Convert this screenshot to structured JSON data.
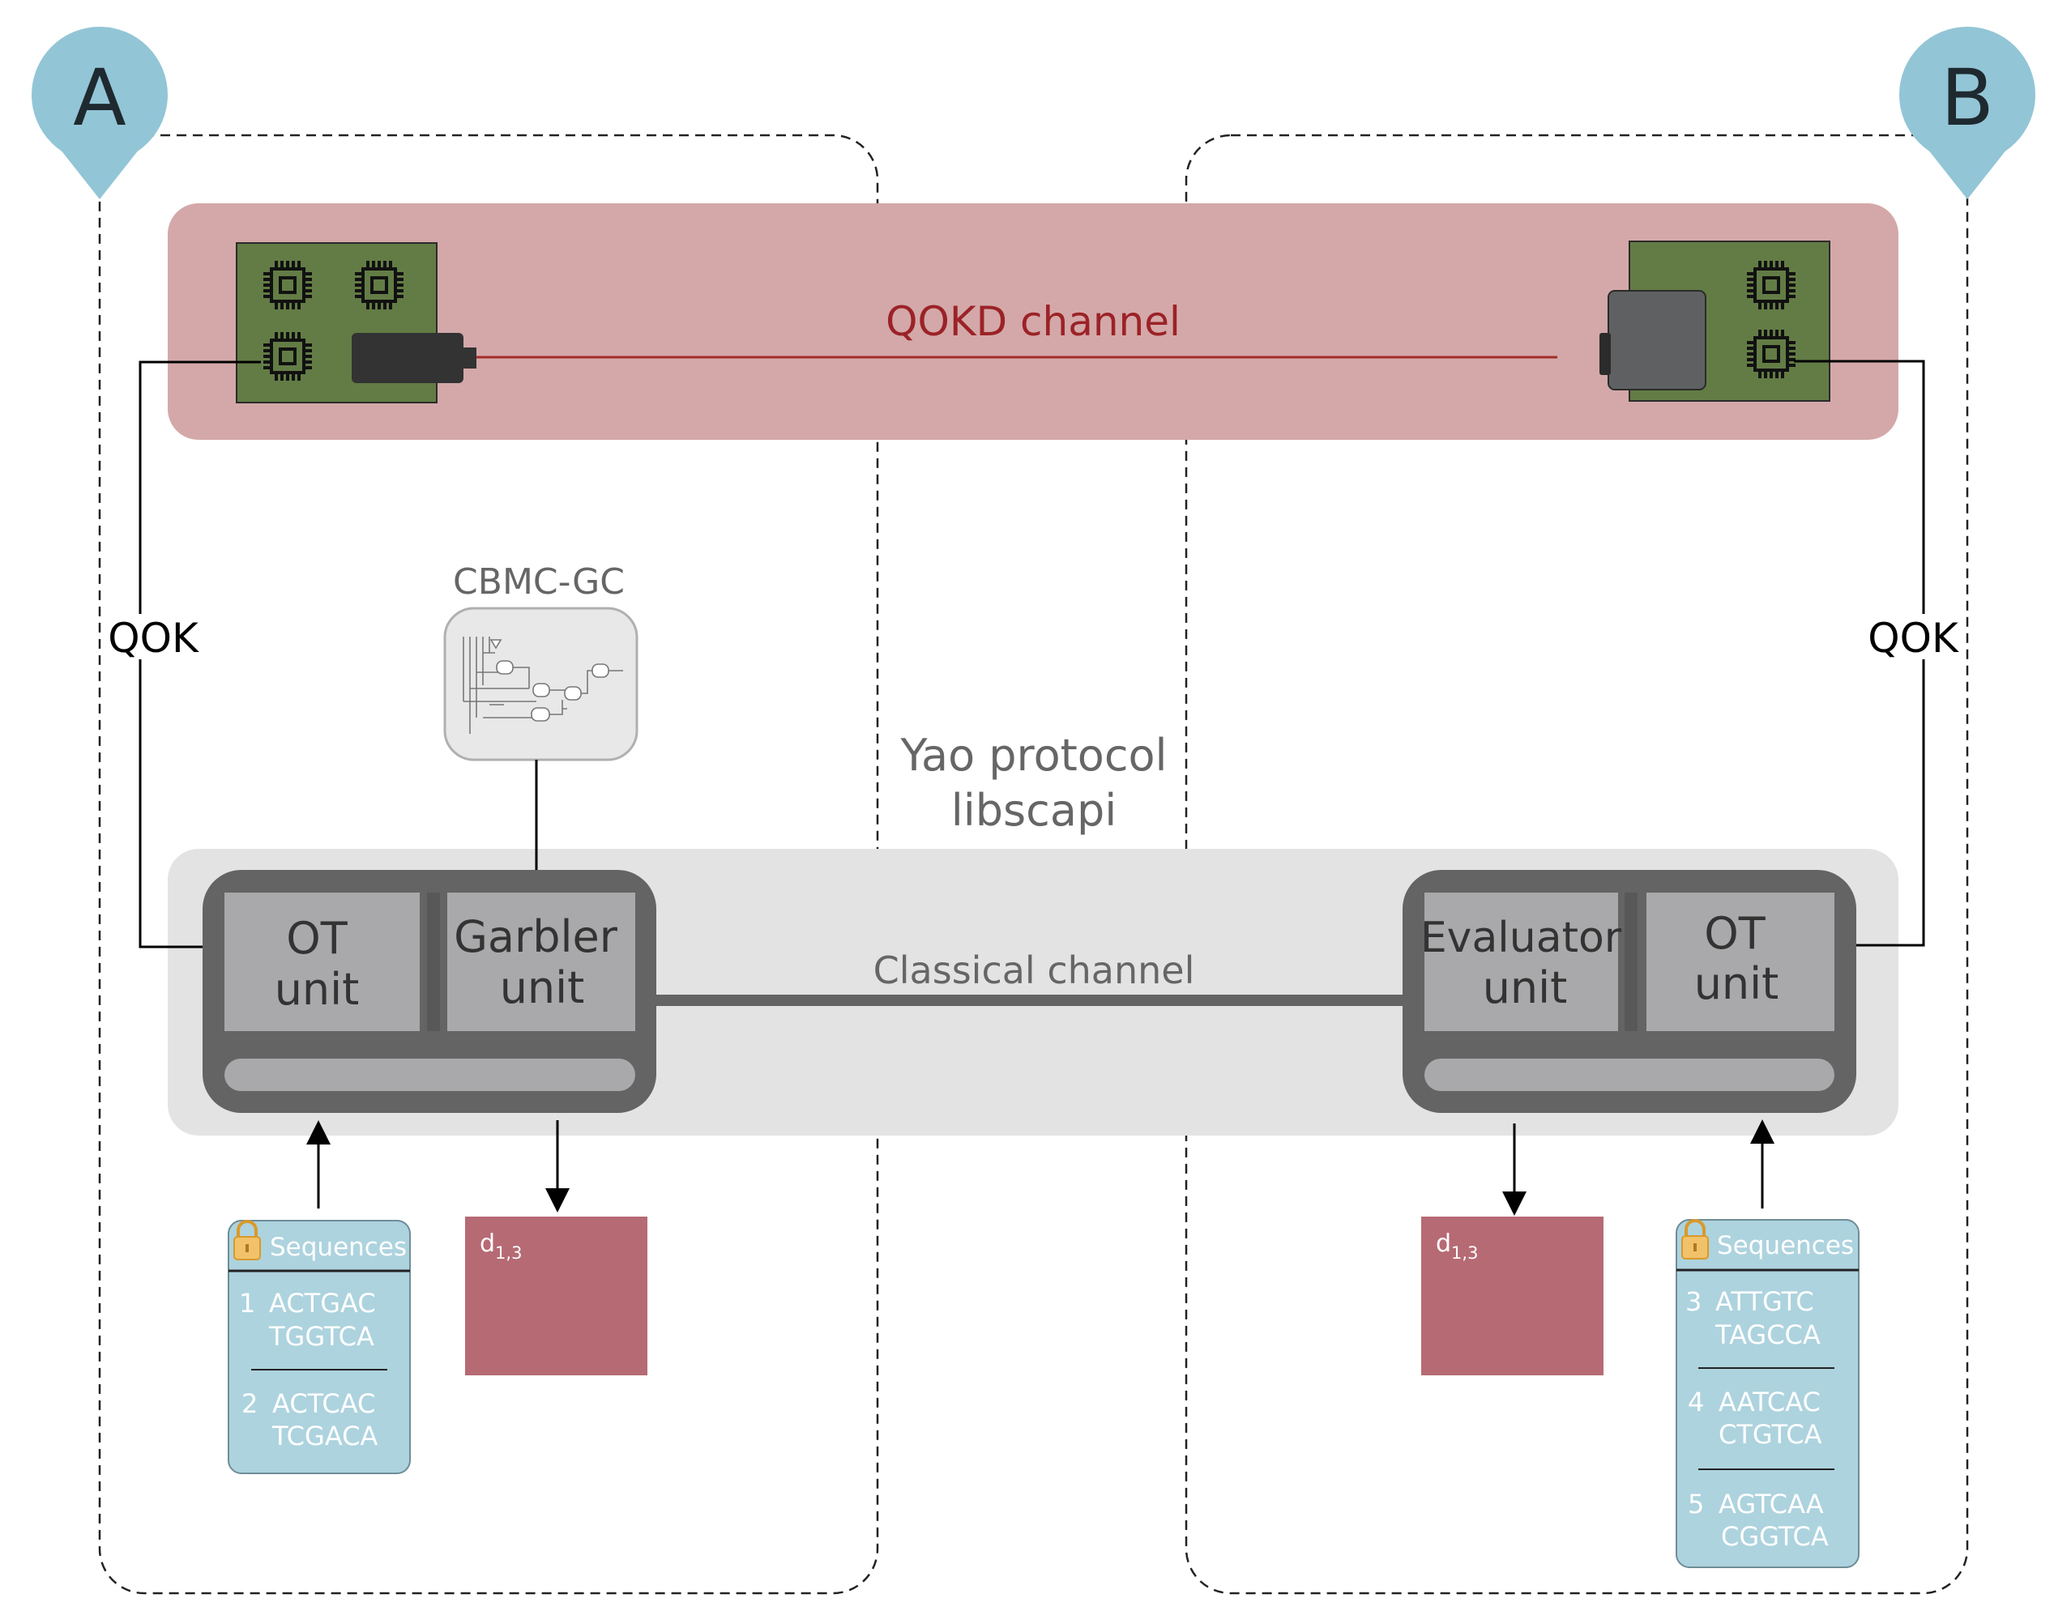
{
  "parties": {
    "a": {
      "label": "A"
    },
    "b": {
      "label": "B"
    }
  },
  "qokd": {
    "label": "QOKD channel"
  },
  "qok": {
    "left_label": "QOK",
    "right_label": "QOK"
  },
  "cbmc": {
    "label": "CBMC-GC"
  },
  "yao": {
    "line1": "Yao protocol",
    "line2": "libscapi"
  },
  "classical": {
    "label": "Classical channel"
  },
  "left_device": {
    "ot_line1": "OT",
    "ot_line2": "unit",
    "garbler_line1": "Garbler",
    "garbler_line2": "unit"
  },
  "right_device": {
    "evaluator_line1": "Evaluator",
    "evaluator_line2": "unit",
    "ot_line1": "OT",
    "ot_line2": "unit"
  },
  "left_output": {
    "base": "d",
    "sub": "1,3"
  },
  "right_output": {
    "base": "d",
    "sub": "1,3"
  },
  "left_sequences": {
    "title": "Sequences",
    "items": [
      {
        "num": "1",
        "line1": "ACTGAC",
        "line2": "TGGTCA"
      },
      {
        "num": "2",
        "line1": "ACTCAC",
        "line2": "TCGACA"
      }
    ]
  },
  "right_sequences": {
    "title": "Sequences",
    "items": [
      {
        "num": "3",
        "line1": "ATTGTC",
        "line2": "TAGCCA"
      },
      {
        "num": "4",
        "line1": "AATCAC",
        "line2": "CTGTCA"
      },
      {
        "num": "5",
        "line1": "AGTCAA",
        "line2": "CGGTCA"
      }
    ]
  },
  "colors": {
    "party_marker": "#92c6d6",
    "qokd_band": "#d4a8a8",
    "qokd_laser": "#a52a2a",
    "qokd_text": "#9b2226",
    "board": "#637c45",
    "classical_band": "#e3e3e3",
    "device_frame": "#646464",
    "unit_fill": "#a9a9ab",
    "output_box": "#b66a73",
    "sequence_box": "#add3df"
  }
}
